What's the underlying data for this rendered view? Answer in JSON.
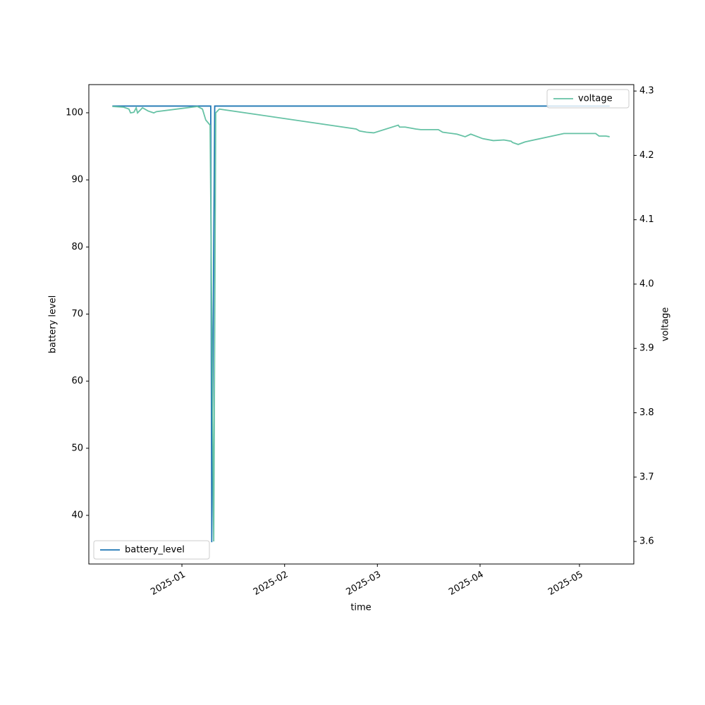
{
  "chart_data": {
    "type": "line",
    "xlabel": "time",
    "ylabel": "battery level",
    "y2label": "voltage",
    "xlim": [
      -28.1,
      136.4
    ],
    "xticks": [
      {
        "value": 0,
        "label": "2025-01"
      },
      {
        "value": 31,
        "label": "2025-02"
      },
      {
        "value": 59,
        "label": "2025-03"
      },
      {
        "value": 90,
        "label": "2025-04"
      },
      {
        "value": 120,
        "label": "2025-05"
      }
    ],
    "ylim": [
      32.75,
      104.2
    ],
    "yticks": [
      40,
      50,
      60,
      70,
      80,
      90,
      100
    ],
    "y2lim": [
      3.565,
      4.31
    ],
    "y2ticks": [
      3.6,
      3.7,
      3.8,
      3.9,
      {
        "value": 4,
        "label": "4.0"
      },
      4.1,
      4.2,
      4.3
    ],
    "series": [
      {
        "name": "battery_level",
        "color": "#1f77b4",
        "legend": "lower left",
        "x": [
          -21,
          8.7,
          9.0,
          9.9,
          129.1
        ],
        "values": [
          101,
          101,
          36,
          101,
          101
        ]
      },
      {
        "name": "voltage",
        "color": "#66c2a5",
        "axis": "y2",
        "legend": "upper right",
        "x": [
          -21,
          -17.7,
          -16,
          -15.5,
          -14.5,
          -13.8,
          -13.4,
          -11.9,
          -10.2,
          -8.5,
          -7.7,
          4.7,
          6.2,
          7.2,
          8.5,
          9.6,
          10.2,
          11.3,
          52.6,
          53.6,
          55.7,
          57.9,
          65.3,
          65.7,
          67.4,
          70.6,
          72.1,
          77.4,
          78.7,
          83,
          85.5,
          87.2,
          90.8,
          94,
          97.2,
          99.4,
          99.8,
          101.5,
          103.6,
          115.3,
          124.9,
          125.9,
          128,
          129.1
        ],
        "values": [
          4.276,
          4.275,
          4.272,
          4.266,
          4.267,
          4.274,
          4.266,
          4.274,
          4.269,
          4.266,
          4.268,
          4.276,
          4.272,
          4.255,
          4.247,
          3.6,
          4.266,
          4.272,
          4.241,
          4.238,
          4.236,
          4.235,
          4.247,
          4.244,
          4.244,
          4.241,
          4.24,
          4.24,
          4.236,
          4.233,
          4.229,
          4.233,
          4.226,
          4.223,
          4.224,
          4.222,
          4.22,
          4.217,
          4.221,
          4.234,
          4.234,
          4.23,
          4.23,
          4.229
        ]
      }
    ]
  }
}
